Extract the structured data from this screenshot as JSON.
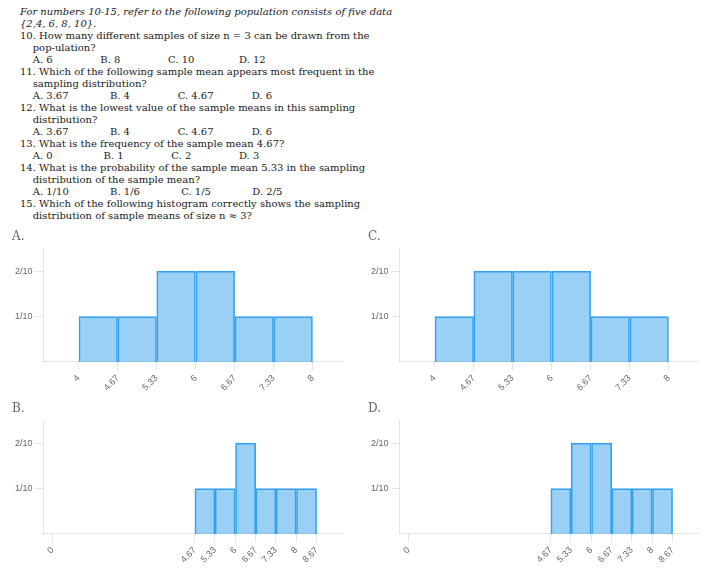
{
  "chart_data": [
    {
      "type": "histogram",
      "title": "A.",
      "annotations": [
        "For numbers 10-15, refer to the following population consists of five data",
        "{2,4, 6, 8, 10}.",
        "10. How many different samples of size n = 3 can be drawn from the",
        "    pop-ulation?",
        "    A. 6               B. 8               C. 10              D. 12",
        "11. Which of the following sample mean appears most frequent in the",
        "    sampling distribution?",
        "    A. 3.67             B. 4               C. 4.67            D. 6",
        "12. What is the lowest value of the sample means in this sampling",
        "    distribution?",
        "    A. 3.67             B. 4               C. 4.67            D. 6",
        "13. What is the frequency of the sample mean 4.67?",
        "    A. 0                B. 1               C. 2               D. 3",
        "14. What is the probability of the sample mean 5.33 in the sampling",
        "    distribution of the sample mean?",
        "    A. 1/10             B. 1/6             C. 1/5             D. 2/5",
        "15. Which of the following histogram correctly shows the sampling",
        "    distribution of sample means of size n ≈ 3?"
      ],
      "bins": [
        4.0,
        4.67,
        5.33,
        6.0,
        6.67,
        7.33,
        8.0
      ],
      "values": [
        0.1,
        0.1,
        0.2,
        0.2,
        0.1,
        0.1
      ],
      "xlim": [
        3.4,
        8.5
      ],
      "xticks": [
        4,
        4.67,
        5.33,
        6,
        6.67,
        7.33,
        8
      ],
      "ylim": [
        0,
        0.25
      ],
      "yticks": [
        {
          "value": 0.1,
          "label": "1/10"
        },
        {
          "value": 0.2,
          "label": "2/10"
        }
      ],
      "grid": false
    },
    {
      "type": "histogram",
      "title": "B.",
      "bins": [
        4.67,
        5.33,
        6.0,
        6.67,
        7.33,
        8.0,
        8.67
      ],
      "values": [
        0.1,
        0.1,
        0.2,
        0.1,
        0.1,
        0.1
      ],
      "xlim": [
        -0.3,
        9.5
      ],
      "xticks": [
        0,
        4.67,
        5.33,
        6,
        6.67,
        7.33,
        8,
        8.67
      ],
      "ylim": [
        0,
        0.25
      ],
      "yticks": [
        {
          "value": 0.1,
          "label": "1/10"
        },
        {
          "value": 0.2,
          "label": "2/10"
        }
      ],
      "grid": false
    },
    {
      "type": "histogram",
      "title": "C.",
      "bins": [
        4.0,
        4.67,
        5.33,
        6.0,
        6.67,
        7.33,
        8.0
      ],
      "values": [
        0.1,
        0.2,
        0.2,
        0.2,
        0.1,
        0.1
      ],
      "xlim": [
        3.4,
        8.5
      ],
      "xticks": [
        4,
        4.67,
        5.33,
        6,
        6.67,
        7.33,
        8
      ],
      "ylim": [
        0,
        0.25
      ],
      "yticks": [
        {
          "value": 0.1,
          "label": "1/10"
        },
        {
          "value": 0.2,
          "label": "2/10"
        }
      ],
      "grid": false
    },
    {
      "type": "histogram",
      "title": "D.",
      "bins": [
        4.67,
        5.33,
        6.0,
        6.67,
        7.33,
        8.0,
        8.67
      ],
      "values": [
        0.1,
        0.2,
        0.2,
        0.1,
        0.1,
        0.1
      ],
      "xlim": [
        -0.3,
        9.5
      ],
      "xticks": [
        0,
        4.67,
        5.33,
        6,
        6.67,
        7.33,
        8,
        8.67
      ],
      "ylim": [
        0,
        0.25
      ],
      "yticks": [
        {
          "value": 0.1,
          "label": "1/10"
        },
        {
          "value": 0.2,
          "label": "2/10"
        }
      ],
      "grid": false
    }
  ]
}
